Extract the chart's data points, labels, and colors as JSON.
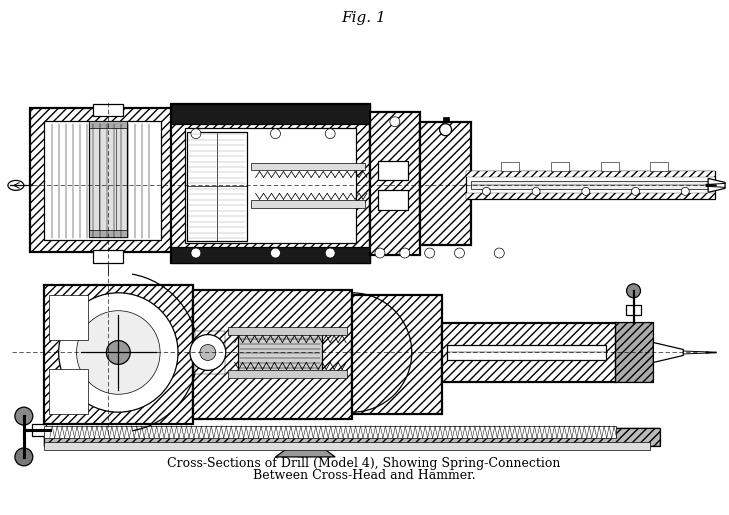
{
  "fig_label": "Fig. 1",
  "caption_line1": "Cross-Sections of Drill (Model 4), Showing Spring-Connection",
  "caption_line2": "Between Cross-Head and Hammer.",
  "bg_color": "#ffffff",
  "line_color": "#000000",
  "dark_fill": "#1a1a1a",
  "med_fill": "#555555",
  "light_fill": "#cccccc",
  "hatch_fill": "#888888",
  "figsize": [
    7.29,
    5.15
  ],
  "dpi": 100,
  "title_fontsize": 11,
  "caption_fontsize": 9.0
}
